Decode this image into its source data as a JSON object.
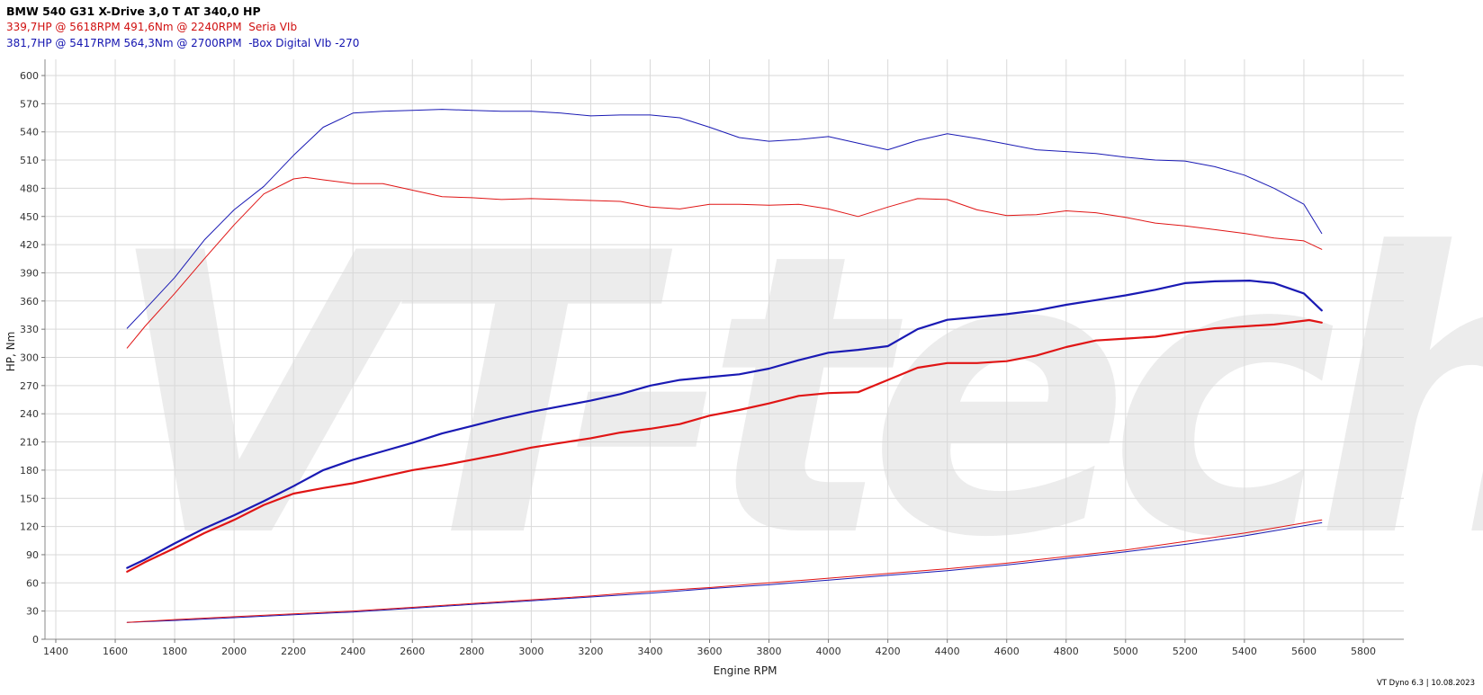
{
  "header": {
    "title": "BMW 540 G31 X-Drive 3,0 T AT 340,0 HP",
    "run1": "339,7HP @ 5618RPM 491,6Nm @ 2240RPM  Seria VIb",
    "run2": "381,7HP @ 5417RPM 564,3Nm @ 2700RPM  -Box Digital VIb -270"
  },
  "footer": "VT Dyno 6.3 | 10.08.2023",
  "watermark": "VT-tech",
  "colors": {
    "stock": "#e01515",
    "tuned": "#1a1ab4",
    "grid": "#d9d9d9",
    "watermark": "#ececec"
  },
  "chart_data": {
    "type": "line",
    "title": "BMW 540 G31 X-Drive 3,0 T AT 340,0 HP",
    "xlabel": "Engine RPM",
    "ylabel": "HP, Nm",
    "xlim": [
      1400,
      5800
    ],
    "ylim": [
      0,
      600
    ],
    "xticks": [
      1400,
      1600,
      1800,
      2000,
      2200,
      2400,
      2600,
      2800,
      3000,
      3200,
      3400,
      3600,
      3800,
      4000,
      4200,
      4400,
      4600,
      4800,
      5000,
      5200,
      5400,
      5600,
      5800
    ],
    "yticks": [
      0,
      30,
      60,
      90,
      120,
      150,
      180,
      210,
      240,
      270,
      300,
      330,
      360,
      390,
      420,
      450,
      480,
      510,
      540,
      570,
      600
    ],
    "grid": true,
    "series": [
      {
        "name": "Box Digital VIb -270",
        "role": "tuned torque",
        "color": "#1a1ab4",
        "width": 1,
        "points": [
          [
            1640,
            331
          ],
          [
            1700,
            351
          ],
          [
            1800,
            385
          ],
          [
            1900,
            425
          ],
          [
            2000,
            457
          ],
          [
            2100,
            482
          ],
          [
            2200,
            515
          ],
          [
            2300,
            545
          ],
          [
            2400,
            560
          ],
          [
            2500,
            562
          ],
          [
            2600,
            563
          ],
          [
            2700,
            564
          ],
          [
            2800,
            563
          ],
          [
            2900,
            562
          ],
          [
            3000,
            562
          ],
          [
            3100,
            560
          ],
          [
            3200,
            557
          ],
          [
            3300,
            558
          ],
          [
            3400,
            558
          ],
          [
            3500,
            555
          ],
          [
            3600,
            545
          ],
          [
            3700,
            534
          ],
          [
            3800,
            530
          ],
          [
            3900,
            532
          ],
          [
            4000,
            535
          ],
          [
            4100,
            528
          ],
          [
            4200,
            521
          ],
          [
            4300,
            531
          ],
          [
            4400,
            538
          ],
          [
            4500,
            533
          ],
          [
            4600,
            527
          ],
          [
            4700,
            521
          ],
          [
            4800,
            519
          ],
          [
            4900,
            517
          ],
          [
            5000,
            513
          ],
          [
            5100,
            510
          ],
          [
            5200,
            509
          ],
          [
            5300,
            503
          ],
          [
            5400,
            494
          ],
          [
            5500,
            480
          ],
          [
            5600,
            463
          ],
          [
            5660,
            432
          ]
        ]
      },
      {
        "name": "Seria VIb",
        "role": "stock torque",
        "color": "#e01515",
        "width": 1,
        "points": [
          [
            1640,
            310
          ],
          [
            1700,
            333
          ],
          [
            1800,
            368
          ],
          [
            1900,
            405
          ],
          [
            2000,
            441
          ],
          [
            2100,
            474
          ],
          [
            2200,
            490
          ],
          [
            2240,
            491.6
          ],
          [
            2300,
            489
          ],
          [
            2400,
            485
          ],
          [
            2500,
            485
          ],
          [
            2600,
            478
          ],
          [
            2700,
            471
          ],
          [
            2800,
            470
          ],
          [
            2900,
            468
          ],
          [
            3000,
            469
          ],
          [
            3100,
            468
          ],
          [
            3200,
            467
          ],
          [
            3300,
            466
          ],
          [
            3400,
            460
          ],
          [
            3500,
            458
          ],
          [
            3600,
            463
          ],
          [
            3700,
            463
          ],
          [
            3800,
            462
          ],
          [
            3900,
            463
          ],
          [
            4000,
            458
          ],
          [
            4100,
            450
          ],
          [
            4200,
            460
          ],
          [
            4300,
            469
          ],
          [
            4400,
            468
          ],
          [
            4500,
            457
          ],
          [
            4600,
            451
          ],
          [
            4700,
            452
          ],
          [
            4800,
            456
          ],
          [
            4900,
            454
          ],
          [
            5000,
            449
          ],
          [
            5100,
            443
          ],
          [
            5200,
            440
          ],
          [
            5300,
            436
          ],
          [
            5400,
            432
          ],
          [
            5500,
            427
          ],
          [
            5600,
            424
          ],
          [
            5660,
            415
          ]
        ]
      },
      {
        "name": "Box Digital VIb -270",
        "role": "tuned power",
        "color": "#1a1ab4",
        "width": 2.2,
        "points": [
          [
            1640,
            76
          ],
          [
            1700,
            85
          ],
          [
            1800,
            102
          ],
          [
            1900,
            118
          ],
          [
            2000,
            132
          ],
          [
            2100,
            147
          ],
          [
            2200,
            163
          ],
          [
            2300,
            180
          ],
          [
            2400,
            191
          ],
          [
            2500,
            200
          ],
          [
            2600,
            209
          ],
          [
            2700,
            219
          ],
          [
            2800,
            227
          ],
          [
            2900,
            235
          ],
          [
            3000,
            242
          ],
          [
            3100,
            248
          ],
          [
            3200,
            254
          ],
          [
            3300,
            261
          ],
          [
            3400,
            270
          ],
          [
            3500,
            276
          ],
          [
            3600,
            279
          ],
          [
            3700,
            282
          ],
          [
            3800,
            288
          ],
          [
            3900,
            297
          ],
          [
            4000,
            305
          ],
          [
            4100,
            308
          ],
          [
            4200,
            312
          ],
          [
            4300,
            330
          ],
          [
            4400,
            340
          ],
          [
            4500,
            343
          ],
          [
            4600,
            346
          ],
          [
            4700,
            350
          ],
          [
            4800,
            356
          ],
          [
            4900,
            361
          ],
          [
            5000,
            366
          ],
          [
            5100,
            372
          ],
          [
            5200,
            379
          ],
          [
            5300,
            381
          ],
          [
            5417,
            381.7
          ],
          [
            5500,
            379
          ],
          [
            5600,
            368
          ],
          [
            5660,
            350
          ]
        ]
      },
      {
        "name": "Seria VIb",
        "role": "stock power",
        "color": "#e01515",
        "width": 2.2,
        "points": [
          [
            1640,
            72
          ],
          [
            1700,
            82
          ],
          [
            1800,
            97
          ],
          [
            1900,
            113
          ],
          [
            2000,
            127
          ],
          [
            2100,
            143
          ],
          [
            2200,
            155
          ],
          [
            2300,
            161
          ],
          [
            2400,
            166
          ],
          [
            2500,
            173
          ],
          [
            2600,
            180
          ],
          [
            2700,
            185
          ],
          [
            2800,
            191
          ],
          [
            2900,
            197
          ],
          [
            3000,
            204
          ],
          [
            3100,
            209
          ],
          [
            3200,
            214
          ],
          [
            3300,
            220
          ],
          [
            3400,
            224
          ],
          [
            3500,
            229
          ],
          [
            3600,
            238
          ],
          [
            3700,
            244
          ],
          [
            3800,
            251
          ],
          [
            3900,
            259
          ],
          [
            4000,
            262
          ],
          [
            4100,
            263
          ],
          [
            4200,
            276
          ],
          [
            4300,
            289
          ],
          [
            4400,
            294
          ],
          [
            4500,
            294
          ],
          [
            4600,
            296
          ],
          [
            4700,
            302
          ],
          [
            4800,
            311
          ],
          [
            4900,
            318
          ],
          [
            5000,
            320
          ],
          [
            5100,
            322
          ],
          [
            5200,
            327
          ],
          [
            5300,
            331
          ],
          [
            5400,
            333
          ],
          [
            5500,
            335
          ],
          [
            5618,
            339.7
          ],
          [
            5660,
            337
          ]
        ]
      },
      {
        "name": "Box Digital VIb -270",
        "role": "tuned loss curve",
        "color": "#1a1ab4",
        "width": 1,
        "points": [
          [
            1640,
            18
          ],
          [
            1800,
            20
          ],
          [
            2000,
            23
          ],
          [
            2200,
            26
          ],
          [
            2400,
            29
          ],
          [
            2600,
            33
          ],
          [
            2800,
            37
          ],
          [
            3000,
            41
          ],
          [
            3200,
            45
          ],
          [
            3400,
            49
          ],
          [
            3600,
            54
          ],
          [
            3800,
            58
          ],
          [
            4000,
            63
          ],
          [
            4200,
            68
          ],
          [
            4400,
            73
          ],
          [
            4600,
            79
          ],
          [
            4800,
            86
          ],
          [
            5000,
            93
          ],
          [
            5200,
            101
          ],
          [
            5400,
            110
          ],
          [
            5660,
            124
          ]
        ]
      },
      {
        "name": "Seria VIb",
        "role": "stock loss curve",
        "color": "#e01515",
        "width": 1,
        "points": [
          [
            1640,
            18
          ],
          [
            1800,
            21
          ],
          [
            2000,
            24
          ],
          [
            2200,
            27
          ],
          [
            2400,
            30
          ],
          [
            2600,
            34
          ],
          [
            2800,
            38
          ],
          [
            3000,
            42
          ],
          [
            3200,
            46
          ],
          [
            3400,
            51
          ],
          [
            3600,
            55
          ],
          [
            3800,
            60
          ],
          [
            4000,
            65
          ],
          [
            4200,
            70
          ],
          [
            4400,
            75
          ],
          [
            4600,
            81
          ],
          [
            4800,
            88
          ],
          [
            5000,
            95
          ],
          [
            5200,
            104
          ],
          [
            5400,
            113
          ],
          [
            5660,
            127
          ]
        ]
      }
    ]
  }
}
